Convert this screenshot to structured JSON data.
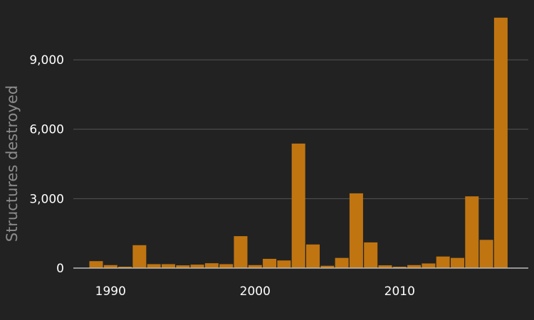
{
  "chart_data": {
    "type": "bar",
    "ylabel": "Structures destroyed",
    "xlabel": "",
    "title": "",
    "x": [
      1989,
      1990,
      1991,
      1992,
      1993,
      1994,
      1995,
      1996,
      1997,
      1998,
      1999,
      2000,
      2001,
      2002,
      2003,
      2004,
      2005,
      2006,
      2007,
      2008,
      2009,
      2010,
      2011,
      2012,
      2013,
      2014,
      2015,
      2016,
      2017
    ],
    "values": [
      300,
      130,
      60,
      990,
      170,
      170,
      120,
      150,
      210,
      170,
      1380,
      130,
      400,
      330,
      5380,
      1020,
      100,
      440,
      3230,
      1110,
      120,
      60,
      130,
      200,
      500,
      440,
      3100,
      1220,
      10820
    ],
    "ylim": [
      0,
      11000
    ],
    "yticks": [
      0,
      3000,
      6000,
      9000
    ],
    "ytick_labels": [
      "0",
      "3,000",
      "6,000",
      "9,000"
    ],
    "xticks": [
      1990,
      2000,
      2010
    ],
    "xtick_labels": [
      "1990",
      "2000",
      "2010"
    ],
    "grid": "horizontal",
    "colors": {
      "bar": "#c07511",
      "grid": "#555555",
      "baseline": "#bbbbbb",
      "background": "#222222",
      "tick_text": "#ffffff",
      "axis_title": "#8c8c8c"
    }
  }
}
